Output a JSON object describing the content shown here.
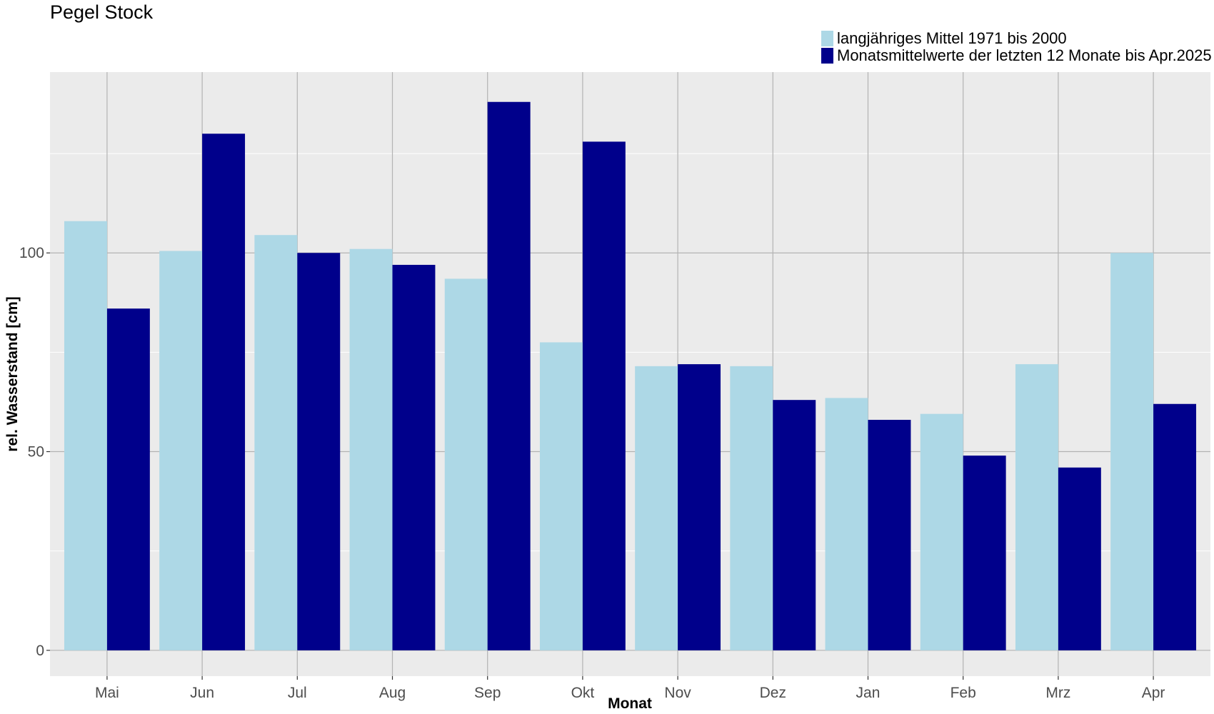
{
  "chart_data": {
    "type": "bar",
    "title": "Pegel Stock",
    "xlabel": "Monat",
    "ylabel": "rel. Wasserstand [cm]",
    "categories": [
      "Mai",
      "Jun",
      "Jul",
      "Aug",
      "Sep",
      "Okt",
      "Nov",
      "Dez",
      "Jan",
      "Feb",
      "Mrz",
      "Apr"
    ],
    "series": [
      {
        "name": "langjähriges Mittel 1971 bis 2000",
        "color": "#add8e6",
        "values": [
          108,
          100.5,
          104.5,
          101,
          93.5,
          77.5,
          71.5,
          71.5,
          63.5,
          59.5,
          72,
          100
        ]
      },
      {
        "name": "Monatsmittelwerte der letzten 12 Monate bis Apr.2025",
        "color": "#00008b",
        "values": [
          86,
          130,
          100,
          97,
          138,
          128,
          72,
          63,
          58,
          49,
          46,
          62
        ]
      }
    ],
    "ylim": [
      -6.5,
      145.5
    ],
    "yticks": [
      0,
      50,
      100
    ],
    "grid": true,
    "legend_position": "top-right"
  }
}
